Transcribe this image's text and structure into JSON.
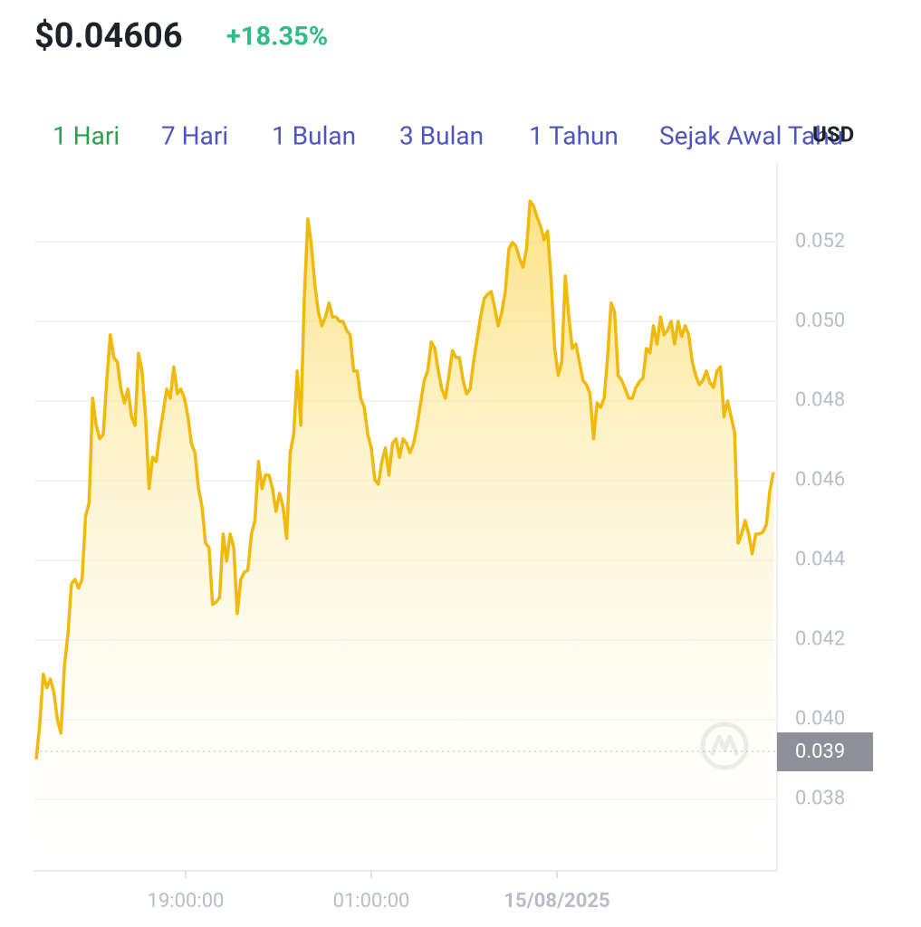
{
  "header": {
    "price": "$0.04606",
    "change": "+18.35%",
    "tabs": [
      "1 Hari",
      "7 Hari",
      "1 Bulan",
      "3 Bulan",
      "1 Tahun",
      "Sejak Awal Tahu"
    ],
    "active_tab": 0,
    "currency": "USD"
  },
  "chart_data": {
    "type": "area",
    "color": "#f0b90b",
    "values": [
      0.039,
      0.03989,
      0.04114,
      0.0408,
      0.04102,
      0.04068,
      0.04,
      0.03966,
      0.04136,
      0.04216,
      0.04341,
      0.04352,
      0.0433,
      0.04352,
      0.04511,
      0.04545,
      0.04807,
      0.04739,
      0.04705,
      0.04716,
      0.04852,
      0.04966,
      0.04909,
      0.04898,
      0.0483,
      0.04795,
      0.0483,
      0.04761,
      0.04739,
      0.0492,
      0.04875,
      0.04761,
      0.0458,
      0.04659,
      0.04648,
      0.04716,
      0.04773,
      0.0483,
      0.04807,
      0.04886,
      0.04818,
      0.0483,
      0.04807,
      0.04761,
      0.04693,
      0.0467,
      0.0458,
      0.04534,
      0.04443,
      0.04432,
      0.04289,
      0.04295,
      0.04307,
      0.04466,
      0.04398,
      0.04466,
      0.04432,
      0.04266,
      0.04352,
      0.0437,
      0.04375,
      0.04466,
      0.045,
      0.04648,
      0.0458,
      0.04614,
      0.04614,
      0.0458,
      0.04523,
      0.04568,
      0.04534,
      0.04455,
      0.0467,
      0.04716,
      0.04875,
      0.04739,
      0.05057,
      0.05257,
      0.05193,
      0.05091,
      0.05023,
      0.04989,
      0.05011,
      0.05046,
      0.05011,
      0.05011,
      0.05,
      0.05,
      0.04978,
      0.04966,
      0.04875,
      0.04875,
      0.04807,
      0.04784,
      0.04716,
      0.04682,
      0.04602,
      0.04591,
      0.04648,
      0.04682,
      0.04614,
      0.04693,
      0.04705,
      0.04659,
      0.04705,
      0.04693,
      0.0467,
      0.04693,
      0.04739,
      0.04795,
      0.04852,
      0.04875,
      0.04948,
      0.04932,
      0.04875,
      0.0483,
      0.04807,
      0.04864,
      0.04927,
      0.04909,
      0.04909,
      0.04852,
      0.04818,
      0.0483,
      0.04898,
      0.04955,
      0.05011,
      0.05057,
      0.05068,
      0.05075,
      0.05034,
      0.04989,
      0.05023,
      0.05075,
      0.05182,
      0.05198,
      0.05189,
      0.05159,
      0.05136,
      0.05182,
      0.05302,
      0.05289,
      0.05261,
      0.05239,
      0.05205,
      0.05227,
      0.05102,
      0.04932,
      0.04864,
      0.04898,
      0.05114,
      0.05011,
      0.04932,
      0.04943,
      0.04898,
      0.04852,
      0.04841,
      0.04818,
      0.04705,
      0.04795,
      0.04784,
      0.04807,
      0.04909,
      0.05046,
      0.05023,
      0.04864,
      0.04852,
      0.0483,
      0.04807,
      0.04807,
      0.04834,
      0.04848,
      0.04857,
      0.04932,
      0.04921,
      0.04989,
      0.04943,
      0.05011,
      0.04966,
      0.04978,
      0.05,
      0.04943,
      0.05,
      0.04962,
      0.04989,
      0.04966,
      0.04898,
      0.04864,
      0.04841,
      0.04852,
      0.04875,
      0.04846,
      0.04834,
      0.04875,
      0.04886,
      0.04761,
      0.048,
      0.04761,
      0.04721,
      0.04443,
      0.04466,
      0.045,
      0.04466,
      0.04416,
      0.04466,
      0.04466,
      0.04471,
      0.04489,
      0.04575,
      0.04621
    ],
    "ylim": [
      0.0362,
      0.054
    ],
    "yticks": [
      0.038,
      0.04,
      0.042,
      0.044,
      0.046,
      0.048,
      0.05,
      0.052
    ],
    "ytick_labels": [
      "0.038",
      "0.040",
      "0.042",
      "0.044",
      "0.046",
      "0.048",
      "0.050",
      "0.052"
    ],
    "xtick_labels": [
      "19:00:00",
      "01:00:00",
      "15/08/2025"
    ],
    "reference_line": {
      "value": 0.0392,
      "label": "0.039"
    },
    "grid": true
  }
}
